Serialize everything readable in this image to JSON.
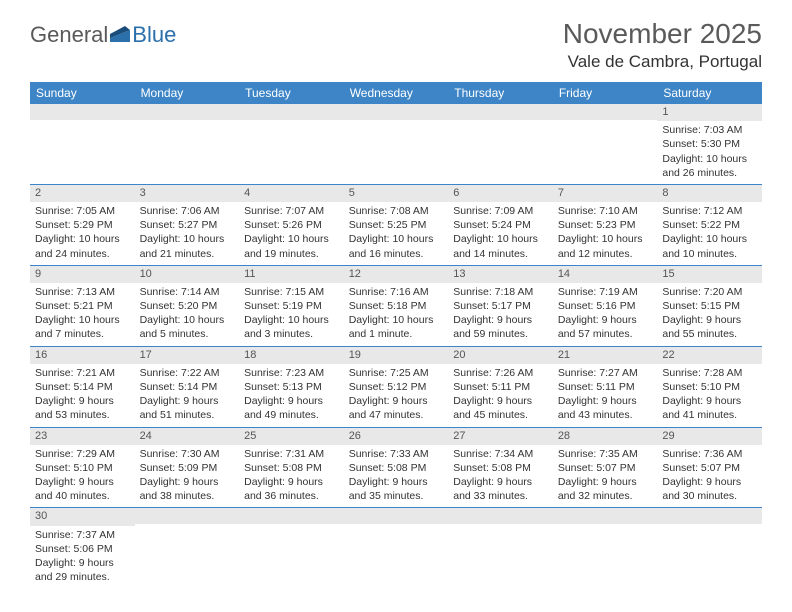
{
  "logo": {
    "text1": "General",
    "text2": "Blue"
  },
  "title": "November 2025",
  "location": "Vale de Cambra, Portugal",
  "colors": {
    "header_bg": "#3d85c6",
    "header_text": "#ffffff",
    "daynum_bg": "#e8e8e8",
    "border": "#3d85c6",
    "title_color": "#5a5a5a",
    "logo_blue": "#2b6fab"
  },
  "day_headers": [
    "Sunday",
    "Monday",
    "Tuesday",
    "Wednesday",
    "Thursday",
    "Friday",
    "Saturday"
  ],
  "weeks": [
    [
      null,
      null,
      null,
      null,
      null,
      null,
      {
        "n": "1",
        "sr": "Sunrise: 7:03 AM",
        "ss": "Sunset: 5:30 PM",
        "dl": "Daylight: 10 hours and 26 minutes."
      }
    ],
    [
      {
        "n": "2",
        "sr": "Sunrise: 7:05 AM",
        "ss": "Sunset: 5:29 PM",
        "dl": "Daylight: 10 hours and 24 minutes."
      },
      {
        "n": "3",
        "sr": "Sunrise: 7:06 AM",
        "ss": "Sunset: 5:27 PM",
        "dl": "Daylight: 10 hours and 21 minutes."
      },
      {
        "n": "4",
        "sr": "Sunrise: 7:07 AM",
        "ss": "Sunset: 5:26 PM",
        "dl": "Daylight: 10 hours and 19 minutes."
      },
      {
        "n": "5",
        "sr": "Sunrise: 7:08 AM",
        "ss": "Sunset: 5:25 PM",
        "dl": "Daylight: 10 hours and 16 minutes."
      },
      {
        "n": "6",
        "sr": "Sunrise: 7:09 AM",
        "ss": "Sunset: 5:24 PM",
        "dl": "Daylight: 10 hours and 14 minutes."
      },
      {
        "n": "7",
        "sr": "Sunrise: 7:10 AM",
        "ss": "Sunset: 5:23 PM",
        "dl": "Daylight: 10 hours and 12 minutes."
      },
      {
        "n": "8",
        "sr": "Sunrise: 7:12 AM",
        "ss": "Sunset: 5:22 PM",
        "dl": "Daylight: 10 hours and 10 minutes."
      }
    ],
    [
      {
        "n": "9",
        "sr": "Sunrise: 7:13 AM",
        "ss": "Sunset: 5:21 PM",
        "dl": "Daylight: 10 hours and 7 minutes."
      },
      {
        "n": "10",
        "sr": "Sunrise: 7:14 AM",
        "ss": "Sunset: 5:20 PM",
        "dl": "Daylight: 10 hours and 5 minutes."
      },
      {
        "n": "11",
        "sr": "Sunrise: 7:15 AM",
        "ss": "Sunset: 5:19 PM",
        "dl": "Daylight: 10 hours and 3 minutes."
      },
      {
        "n": "12",
        "sr": "Sunrise: 7:16 AM",
        "ss": "Sunset: 5:18 PM",
        "dl": "Daylight: 10 hours and 1 minute."
      },
      {
        "n": "13",
        "sr": "Sunrise: 7:18 AM",
        "ss": "Sunset: 5:17 PM",
        "dl": "Daylight: 9 hours and 59 minutes."
      },
      {
        "n": "14",
        "sr": "Sunrise: 7:19 AM",
        "ss": "Sunset: 5:16 PM",
        "dl": "Daylight: 9 hours and 57 minutes."
      },
      {
        "n": "15",
        "sr": "Sunrise: 7:20 AM",
        "ss": "Sunset: 5:15 PM",
        "dl": "Daylight: 9 hours and 55 minutes."
      }
    ],
    [
      {
        "n": "16",
        "sr": "Sunrise: 7:21 AM",
        "ss": "Sunset: 5:14 PM",
        "dl": "Daylight: 9 hours and 53 minutes."
      },
      {
        "n": "17",
        "sr": "Sunrise: 7:22 AM",
        "ss": "Sunset: 5:14 PM",
        "dl": "Daylight: 9 hours and 51 minutes."
      },
      {
        "n": "18",
        "sr": "Sunrise: 7:23 AM",
        "ss": "Sunset: 5:13 PM",
        "dl": "Daylight: 9 hours and 49 minutes."
      },
      {
        "n": "19",
        "sr": "Sunrise: 7:25 AM",
        "ss": "Sunset: 5:12 PM",
        "dl": "Daylight: 9 hours and 47 minutes."
      },
      {
        "n": "20",
        "sr": "Sunrise: 7:26 AM",
        "ss": "Sunset: 5:11 PM",
        "dl": "Daylight: 9 hours and 45 minutes."
      },
      {
        "n": "21",
        "sr": "Sunrise: 7:27 AM",
        "ss": "Sunset: 5:11 PM",
        "dl": "Daylight: 9 hours and 43 minutes."
      },
      {
        "n": "22",
        "sr": "Sunrise: 7:28 AM",
        "ss": "Sunset: 5:10 PM",
        "dl": "Daylight: 9 hours and 41 minutes."
      }
    ],
    [
      {
        "n": "23",
        "sr": "Sunrise: 7:29 AM",
        "ss": "Sunset: 5:10 PM",
        "dl": "Daylight: 9 hours and 40 minutes."
      },
      {
        "n": "24",
        "sr": "Sunrise: 7:30 AM",
        "ss": "Sunset: 5:09 PM",
        "dl": "Daylight: 9 hours and 38 minutes."
      },
      {
        "n": "25",
        "sr": "Sunrise: 7:31 AM",
        "ss": "Sunset: 5:08 PM",
        "dl": "Daylight: 9 hours and 36 minutes."
      },
      {
        "n": "26",
        "sr": "Sunrise: 7:33 AM",
        "ss": "Sunset: 5:08 PM",
        "dl": "Daylight: 9 hours and 35 minutes."
      },
      {
        "n": "27",
        "sr": "Sunrise: 7:34 AM",
        "ss": "Sunset: 5:08 PM",
        "dl": "Daylight: 9 hours and 33 minutes."
      },
      {
        "n": "28",
        "sr": "Sunrise: 7:35 AM",
        "ss": "Sunset: 5:07 PM",
        "dl": "Daylight: 9 hours and 32 minutes."
      },
      {
        "n": "29",
        "sr": "Sunrise: 7:36 AM",
        "ss": "Sunset: 5:07 PM",
        "dl": "Daylight: 9 hours and 30 minutes."
      }
    ],
    [
      {
        "n": "30",
        "sr": "Sunrise: 7:37 AM",
        "ss": "Sunset: 5:06 PM",
        "dl": "Daylight: 9 hours and 29 minutes."
      },
      null,
      null,
      null,
      null,
      null,
      null
    ]
  ]
}
